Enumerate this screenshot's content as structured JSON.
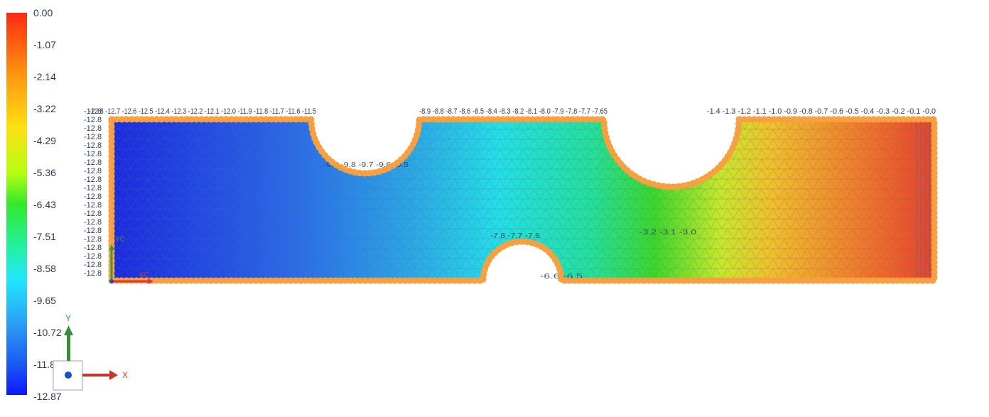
{
  "legend": {
    "labels": [
      "0.00",
      "-1.07",
      "-2.14",
      "-3.22",
      "-4.29",
      "-5.36",
      "-6.43",
      "-7.51",
      "-8.58",
      "-9.65",
      "-10.72",
      "-11.80",
      "-12.87"
    ],
    "min": -12.87,
    "max": 0.0
  },
  "colors": {
    "background": "#ffffff",
    "boundary_nodes": "#f7a042",
    "mesh_lines": "#6f7f8f",
    "label_text": "#2b3a57",
    "x_axis": "#d63a2e",
    "y_axis": "#3b9b3b",
    "z_axis_dot": "#1d4fc4"
  },
  "triad": {
    "x_label": "X",
    "y_label": "Y"
  },
  "mini_triad": {
    "x_label": "XC",
    "y_label": "YC"
  },
  "icons": [
    "coordinate-triad-icon",
    "z-axis-dot-icon"
  ]
}
